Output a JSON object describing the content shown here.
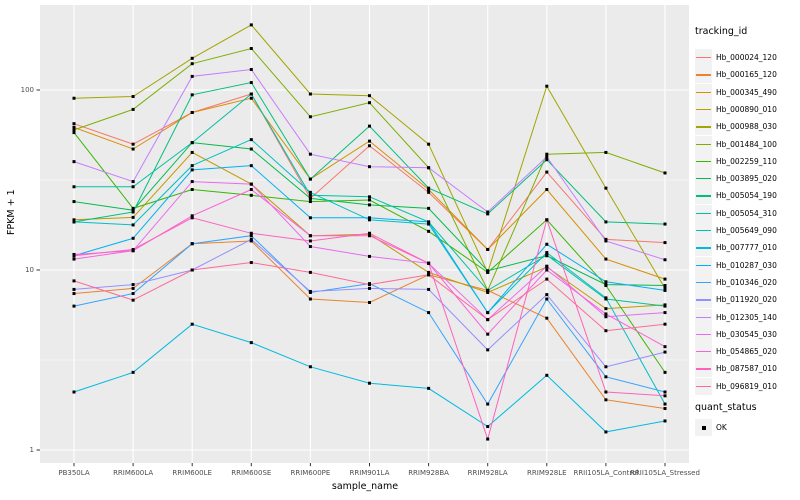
{
  "figure": {
    "y_axis_label": "FPKM + 1",
    "x_axis_label": "sample_name",
    "legend": {
      "tracking_title": "tracking_id",
      "quant_title": "quant_status",
      "quant_ok_label": "OK"
    },
    "colors": {
      "panel_bg": "#EBEBEB",
      "gridline": "#FFFFFF",
      "tick_text": "#4D4D4D",
      "point": "#000000",
      "legend_key_bg": "#F2F2F2"
    }
  },
  "chart_data": {
    "type": "line",
    "title": "",
    "xlabel": "sample_name",
    "ylabel": "FPKM + 1",
    "y_scale": "log10",
    "ylim": [
      0.85,
      296
    ],
    "yticks": [
      1,
      10,
      100
    ],
    "yminor": [
      3.1623,
      31.6228
    ],
    "grid": true,
    "legend_position": "right",
    "point_shape": "filled-square",
    "point_legend": {
      "title": "quant_status",
      "label": "OK"
    },
    "categories": [
      "PB350LA",
      "RRIM600LA",
      "RRIM600LE",
      "RRIM600SE",
      "RRIM600PE",
      "RRIM901LA",
      "RRIM928BA",
      "RRIM928LA",
      "RRIM928LE",
      "RRII105LA_Control",
      "RRII105LA_Stressed"
    ],
    "series": [
      {
        "name": "Hb_000024_120",
        "color": "#F8766D",
        "values": [
          65,
          50,
          75,
          95,
          25,
          49,
          27,
          13,
          35,
          14.8,
          14.2
        ]
      },
      {
        "name": "Hb_000165_120",
        "color": "#EA8331",
        "values": [
          7.4,
          7.9,
          14,
          14.5,
          6.9,
          6.6,
          9.4,
          7.7,
          5.4,
          1.9,
          1.7
        ]
      },
      {
        "name": "Hb_000345_490",
        "color": "#D89000",
        "values": [
          62,
          47,
          75,
          90,
          32,
          52,
          28,
          13,
          28,
          11.5,
          8.9
        ]
      },
      {
        "name": "Hb_000890_010",
        "color": "#C09B00",
        "values": [
          19,
          19.6,
          45,
          30,
          15.5,
          15.8,
          9.7,
          7.5,
          10.4,
          6.1,
          6.4
        ]
      },
      {
        "name": "Hb_000988_030",
        "color": "#A3A500",
        "values": [
          90,
          92,
          150,
          230,
          95,
          93,
          50,
          9.7,
          105,
          28.5,
          7.9
        ]
      },
      {
        "name": "Hb_001484_100",
        "color": "#7CAE00",
        "values": [
          60,
          78,
          140,
          170,
          71,
          85,
          37,
          7.7,
          44,
          45,
          34.6
        ]
      },
      {
        "name": "Hb_002259_110",
        "color": "#39B600",
        "values": [
          58,
          22,
          28,
          26,
          24,
          24.5,
          16.4,
          9.7,
          19,
          8.2,
          2.7
        ]
      },
      {
        "name": "Hb_003895_020",
        "color": "#00BB4E",
        "values": [
          24,
          21.5,
          51,
          47,
          25,
          23,
          22,
          9.9,
          12,
          8.3,
          8.2
        ]
      },
      {
        "name": "Hb_005054_190",
        "color": "#00BF7D",
        "values": [
          18.5,
          21,
          94,
          110,
          32,
          63,
          28.5,
          20.5,
          41,
          18.5,
          18
        ]
      },
      {
        "name": "Hb_005054_310",
        "color": "#00C1A3",
        "values": [
          29,
          29,
          51,
          95,
          26,
          25.5,
          18.5,
          7.7,
          12.1,
          6.9,
          6.3
        ]
      },
      {
        "name": "Hb_005649_090",
        "color": "#00BFC4",
        "values": [
          18.5,
          17.8,
          38,
          53,
          27,
          19,
          18,
          5.8,
          12.5,
          7,
          1.8
        ]
      },
      {
        "name": "Hb_007777_010",
        "color": "#00BAE0",
        "values": [
          2.1,
          2.7,
          5,
          3.95,
          2.9,
          2.35,
          2.2,
          1.35,
          2.6,
          1.26,
          1.45
        ]
      },
      {
        "name": "Hb_010287_030",
        "color": "#00B0F6",
        "values": [
          12,
          15,
          36,
          38,
          19.5,
          19.5,
          18.5,
          5.8,
          13.9,
          8.6,
          7.7
        ]
      },
      {
        "name": "Hb_010346_020",
        "color": "#35A2FF",
        "values": [
          6.3,
          7.4,
          14,
          15.5,
          7.5,
          8.4,
          5.8,
          1.8,
          6.9,
          2.55,
          2.1
        ]
      },
      {
        "name": "Hb_011920_020",
        "color": "#9590FF",
        "values": [
          7.8,
          8.3,
          10,
          14.8,
          7.6,
          7.9,
          7.8,
          3.6,
          7.3,
          2.9,
          3.5
        ]
      },
      {
        "name": "Hb_012305_140",
        "color": "#C77CFF",
        "values": [
          40,
          31,
          119,
          130,
          44,
          37.5,
          37,
          21,
          42.5,
          14.5,
          11.4
        ]
      },
      {
        "name": "Hb_030545_030",
        "color": "#E76BF3",
        "values": [
          12.2,
          12.8,
          31,
          30,
          13.5,
          11.9,
          10.9,
          5.3,
          10.5,
          5.5,
          5.8
        ]
      },
      {
        "name": "Hb_054865_020",
        "color": "#FA62DB",
        "values": [
          11.5,
          12.8,
          20,
          28,
          15.5,
          15.5,
          10.9,
          4.4,
          10,
          5.7,
          3.75
        ]
      },
      {
        "name": "Hb_087587_010",
        "color": "#FF62BC",
        "values": [
          12,
          13,
          19.5,
          16,
          14.5,
          16,
          10.9,
          1.15,
          19,
          2.1,
          2
        ]
      },
      {
        "name": "Hb_096819_010",
        "color": "#FF6A98",
        "values": [
          8.7,
          6.8,
          10,
          11,
          9.7,
          8.3,
          9.4,
          5.3,
          8.9,
          4.6,
          5
        ]
      }
    ]
  }
}
